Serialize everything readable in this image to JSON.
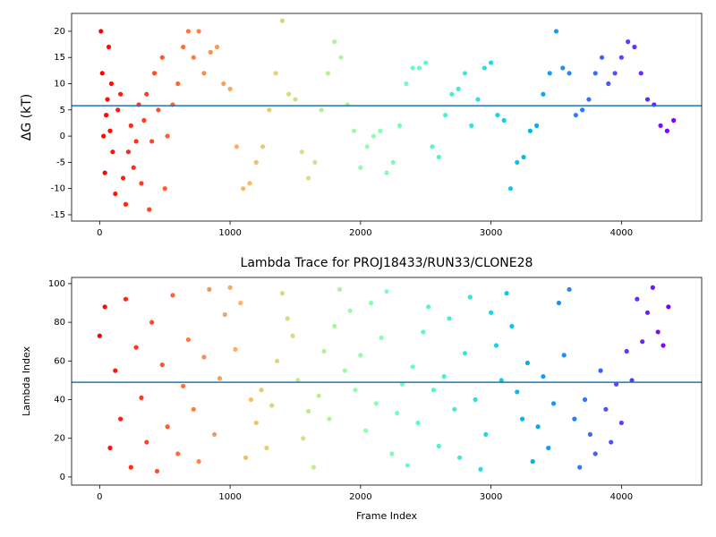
{
  "chart_data": [
    {
      "type": "scatter",
      "y_label": "ΔG (kT)",
      "colormap": "rainbow_r",
      "x": [
        10,
        20,
        30,
        40,
        50,
        60,
        70,
        80,
        90,
        100,
        120,
        140,
        160,
        180,
        200,
        220,
        240,
        260,
        280,
        300,
        320,
        340,
        360,
        380,
        400,
        420,
        450,
        480,
        500,
        520,
        560,
        600,
        640,
        680,
        720,
        760,
        800,
        850,
        900,
        950,
        1000,
        1050,
        1100,
        1150,
        1200,
        1250,
        1300,
        1350,
        1400,
        1450,
        1500,
        1550,
        1600,
        1650,
        1700,
        1750,
        1800,
        1850,
        1900,
        1950,
        2000,
        2050,
        2100,
        2150,
        2200,
        2250,
        2300,
        2350,
        2400,
        2450,
        2500,
        2550,
        2600,
        2650,
        2700,
        2750,
        2800,
        2850,
        2900,
        2950,
        3000,
        3050,
        3100,
        3150,
        3200,
        3250,
        3300,
        3350,
        3400,
        3450,
        3500,
        3550,
        3600,
        3650,
        3700,
        3750,
        3800,
        3850,
        3900,
        3950,
        4000,
        4050,
        4100,
        4150,
        4200,
        4250,
        4300,
        4350,
        4400
      ],
      "values": [
        20,
        12,
        0,
        -7,
        4,
        7,
        17,
        1,
        10,
        -3,
        -11,
        5,
        8,
        -8,
        -13,
        -3,
        2,
        -6,
        -1,
        6,
        -9,
        3,
        8,
        -14,
        -1,
        12,
        5,
        15,
        -10,
        0,
        6,
        10,
        17,
        20,
        15,
        20,
        12,
        16,
        17,
        10,
        9,
        -2,
        -10,
        -9,
        -5,
        -2,
        5,
        12,
        22,
        8,
        7,
        -3,
        -8,
        -5,
        5,
        12,
        18,
        15,
        6,
        1,
        -6,
        -2,
        0,
        1,
        -7,
        -5,
        2,
        10,
        13,
        13,
        14,
        -2,
        -4,
        4,
        8,
        9,
        12,
        2,
        7,
        13,
        14,
        4,
        3,
        -10,
        -5,
        -4,
        1,
        2,
        8,
        12,
        20,
        13,
        12,
        4,
        5,
        7,
        12,
        15,
        10,
        12,
        15,
        18,
        17,
        12,
        7,
        6,
        2,
        1,
        3
      ],
      "hline": 5.8,
      "hline_color": "#1f77b4",
      "xlim": [
        -215,
        4615
      ],
      "ylim": [
        -16.2,
        23.4
      ],
      "xticks": [
        0,
        1000,
        2000,
        3000,
        4000
      ],
      "yticks": [
        -15,
        -10,
        -5,
        0,
        5,
        10,
        15,
        20
      ]
    },
    {
      "type": "scatter",
      "title": "Lambda Trace for PROJ18433/RUN33/CLONE28",
      "x_label": "Frame Index",
      "y_label": "Lambda Index",
      "colormap": "rainbow_r",
      "x": [
        0,
        40,
        80,
        120,
        160,
        200,
        240,
        280,
        320,
        360,
        400,
        440,
        480,
        520,
        560,
        600,
        640,
        680,
        720,
        760,
        800,
        840,
        880,
        920,
        960,
        1000,
        1040,
        1080,
        1120,
        1160,
        1200,
        1240,
        1280,
        1320,
        1360,
        1400,
        1440,
        1480,
        1520,
        1560,
        1600,
        1640,
        1680,
        1720,
        1760,
        1800,
        1840,
        1880,
        1920,
        1960,
        2000,
        2040,
        2080,
        2120,
        2160,
        2200,
        2240,
        2280,
        2320,
        2360,
        2400,
        2440,
        2480,
        2520,
        2560,
        2600,
        2640,
        2680,
        2720,
        2760,
        2800,
        2840,
        2880,
        2920,
        2960,
        3000,
        3040,
        3080,
        3120,
        3160,
        3200,
        3240,
        3280,
        3320,
        3360,
        3400,
        3440,
        3480,
        3520,
        3560,
        3600,
        3640,
        3680,
        3720,
        3760,
        3800,
        3840,
        3880,
        3920,
        3960,
        4000,
        4040,
        4080,
        4120,
        4160,
        4200,
        4240,
        4280,
        4320,
        4360
      ],
      "values": [
        73,
        88,
        15,
        55,
        30,
        92,
        5,
        67,
        41,
        18,
        80,
        3,
        58,
        26,
        94,
        12,
        47,
        71,
        35,
        8,
        62,
        97,
        22,
        51,
        84,
        98,
        66,
        90,
        10,
        40,
        28,
        45,
        15,
        37,
        60,
        95,
        82,
        73,
        50,
        20,
        34,
        5,
        42,
        65,
        30,
        78,
        97,
        55,
        86,
        45,
        63,
        24,
        90,
        38,
        72,
        96,
        12,
        33,
        48,
        6,
        57,
        28,
        75,
        88,
        45,
        16,
        52,
        82,
        35,
        10,
        64,
        93,
        40,
        4,
        22,
        85,
        68,
        50,
        95,
        78,
        44,
        30,
        59,
        8,
        26,
        52,
        15,
        38,
        90,
        63,
        97,
        30,
        5,
        40,
        22,
        12,
        55,
        35,
        18,
        48,
        28,
        65,
        50,
        92,
        70,
        85,
        98,
        75,
        68,
        88
      ],
      "hline": 49,
      "hline_color": "#1f77b4",
      "xlim": [
        -215,
        4615
      ],
      "ylim": [
        -4.2,
        103.2
      ],
      "xticks": [
        0,
        1000,
        2000,
        3000,
        4000
      ],
      "yticks": [
        0,
        20,
        40,
        60,
        80,
        100
      ]
    }
  ]
}
